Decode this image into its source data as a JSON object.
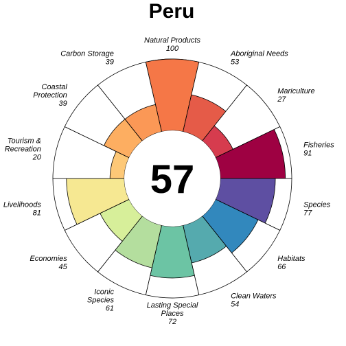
{
  "chart_data": {
    "type": "flower",
    "title": "Peru",
    "overall_score": "57",
    "scale_max": 100,
    "petals": [
      {
        "label": [
          "Natural Products"
        ],
        "value": 100,
        "color": "#F57747"
      },
      {
        "label": [
          "Aboriginal Needs"
        ],
        "value": 53,
        "color": "#E55B48"
      },
      {
        "label": [
          "Mariculture"
        ],
        "value": 27,
        "color": "#D63C4E"
      },
      {
        "label": [
          "Fisheries"
        ],
        "value": 91,
        "color": "#9E0142"
      },
      {
        "label": [
          "Species"
        ],
        "value": 77,
        "color": "#5E4FA2"
      },
      {
        "label": [
          "Habitats"
        ],
        "value": 66,
        "color": "#3288BD"
      },
      {
        "label": [
          "Clean Waters"
        ],
        "value": 54,
        "color": "#55AAAE"
      },
      {
        "label": [
          "Lasting Special",
          "Places"
        ],
        "value": 72,
        "color": "#6CC4A4"
      },
      {
        "label": [
          "Iconic",
          "Species"
        ],
        "value": 61,
        "color": "#B4DE9E"
      },
      {
        "label": [
          "Economies"
        ],
        "value": 45,
        "color": "#D7EF9A"
      },
      {
        "label": [
          "Livelihoods"
        ],
        "value": 81,
        "color": "#F6E892"
      },
      {
        "label": [
          "Tourism &",
          "Recreation"
        ],
        "value": 20,
        "color": "#FDC877"
      },
      {
        "label": [
          "Coastal",
          "Protection"
        ],
        "value": 39,
        "color": "#FDAE61"
      },
      {
        "label": [
          "Carbon Storage"
        ],
        "value": 39,
        "color": "#FB9856"
      }
    ]
  }
}
